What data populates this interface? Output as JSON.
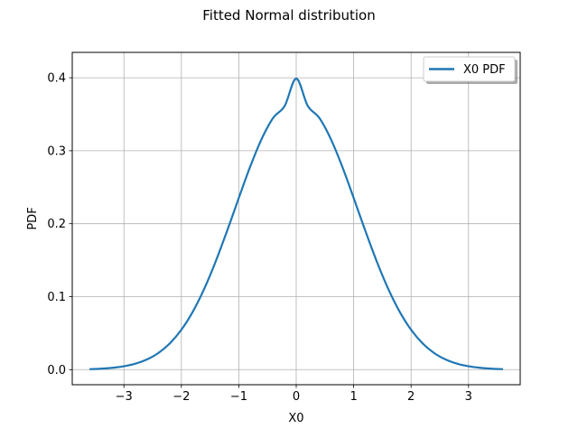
{
  "chart_data": {
    "type": "line",
    "title": "Fitted Normal distribution",
    "xlabel": "X0",
    "ylabel": "PDF",
    "xlim": [
      -3.9,
      3.9
    ],
    "ylim": [
      -0.0207,
      0.4348
    ],
    "xticks": [
      -3,
      -2,
      -1,
      0,
      1,
      2,
      3
    ],
    "xtick_labels": [
      "−3",
      "−2",
      "−1",
      "0",
      "1",
      "2",
      "3"
    ],
    "yticks": [
      0.0,
      0.1,
      0.2,
      0.3,
      0.4
    ],
    "ytick_labels": [
      "0.0",
      "0.1",
      "0.2",
      "0.3",
      "0.4"
    ],
    "grid": true,
    "legend_position": "top-right",
    "series": [
      {
        "name": "X0 PDF",
        "color": "#1f77b4",
        "x": [
          -3.6,
          -3.4,
          -3.2,
          -3.0,
          -2.8,
          -2.6,
          -2.4,
          -2.2,
          -2.0,
          -1.8,
          -1.6,
          -1.4,
          -1.2,
          -1.0,
          -0.8,
          -0.6,
          -0.4,
          -0.2,
          0.0,
          0.2,
          0.4,
          0.6,
          0.8,
          1.0,
          1.2,
          1.4,
          1.6,
          1.8,
          2.0,
          2.2,
          2.4,
          2.6,
          2.8,
          3.0,
          3.2,
          3.4,
          3.6
        ],
        "y": [
          0.0006,
          0.0013,
          0.0025,
          0.0046,
          0.0081,
          0.0139,
          0.0228,
          0.036,
          0.0546,
          0.0795,
          0.111,
          0.1487,
          0.1909,
          0.2353,
          0.2785,
          0.3165,
          0.3452,
          0.3616,
          0.3989,
          0.3616,
          0.3452,
          0.3165,
          0.2785,
          0.2353,
          0.1909,
          0.1487,
          0.111,
          0.0795,
          0.0546,
          0.036,
          0.0228,
          0.0139,
          0.0081,
          0.0046,
          0.0025,
          0.0013,
          0.0006
        ]
      }
    ]
  }
}
